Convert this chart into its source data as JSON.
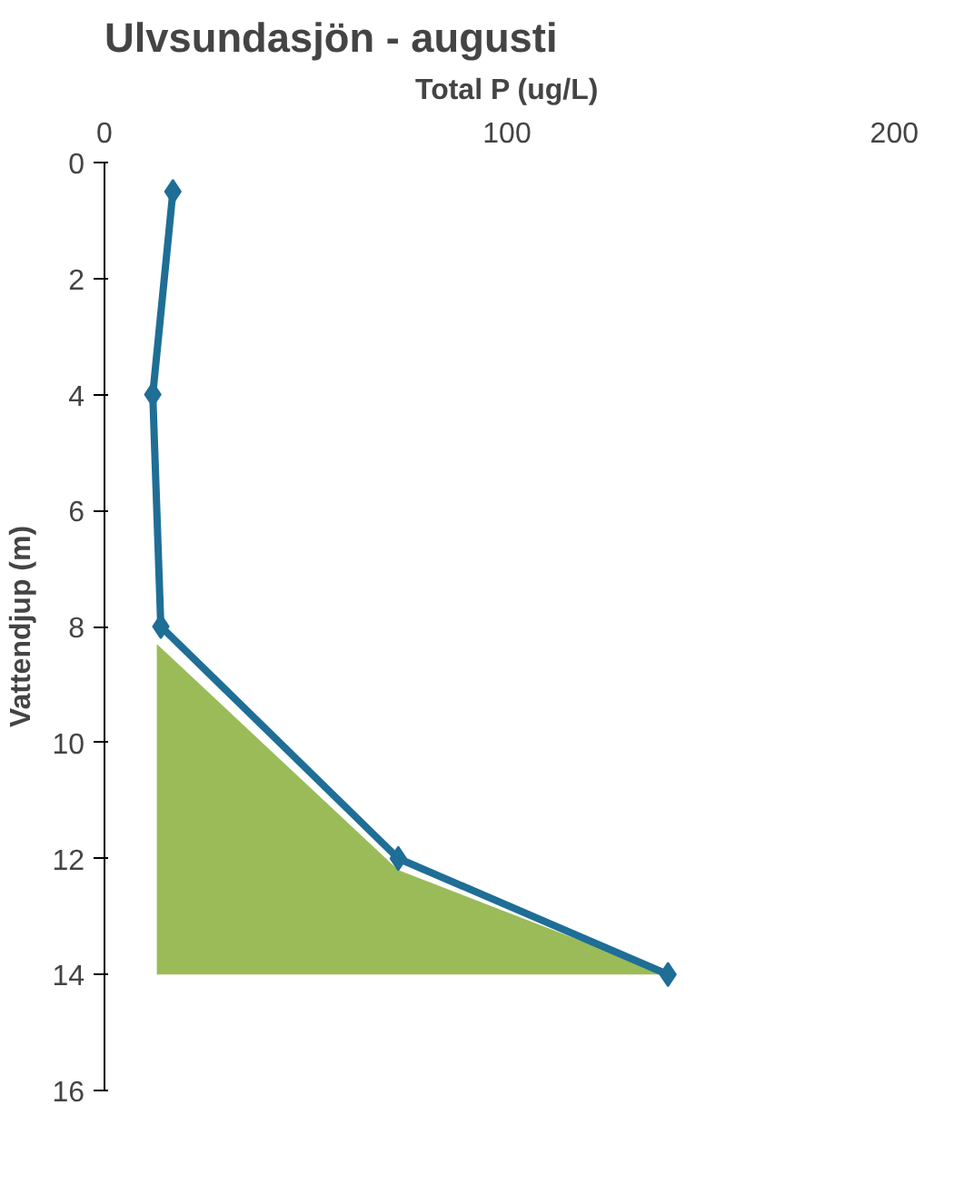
{
  "chart_data": {
    "type": "line",
    "title": "Ulvsundasjön - augusti",
    "xlabel": "Total P (ug/L)",
    "ylabel": "Vattendjup (m)",
    "xlim": [
      0,
      200
    ],
    "xticks": [
      0,
      100,
      200
    ],
    "ylim": [
      16,
      0
    ],
    "yticks": [
      0,
      2,
      4,
      6,
      8,
      10,
      12,
      14,
      16
    ],
    "grid": false,
    "series": [
      {
        "type": "area",
        "color": "#9bbb59",
        "x": [
          13,
          73,
          140,
          13
        ],
        "values": [
          8.3,
          12.2,
          14,
          14
        ]
      },
      {
        "marker": "diamond",
        "color": "#1f6e96",
        "x": [
          17,
          12,
          14,
          73,
          140
        ],
        "values": [
          0.5,
          4,
          8,
          12,
          14
        ]
      }
    ]
  }
}
